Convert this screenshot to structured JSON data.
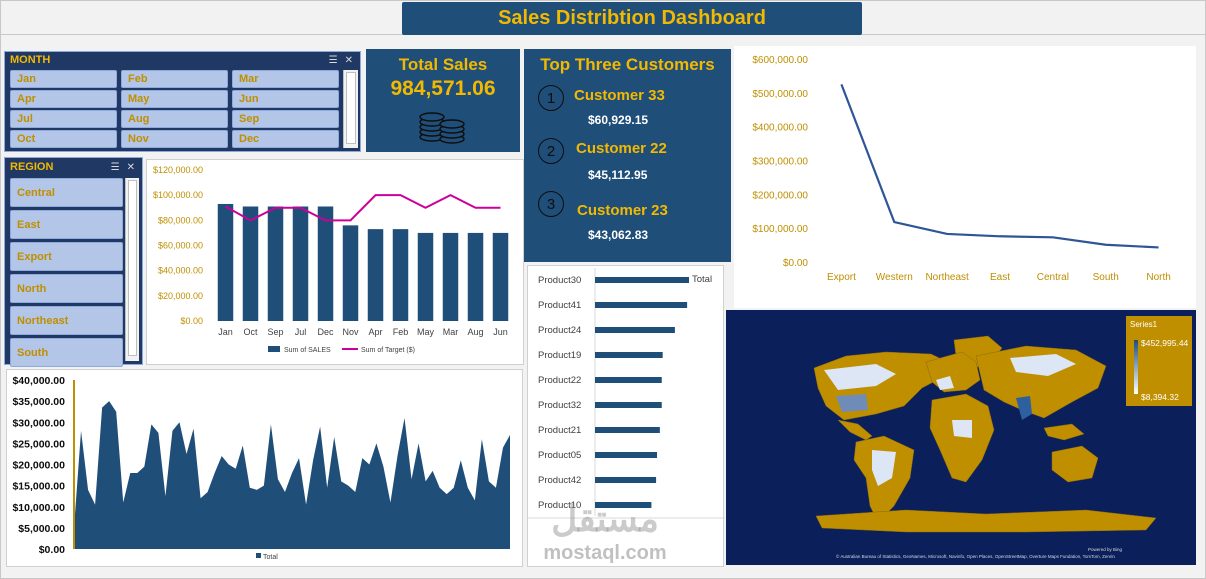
{
  "dashboard": {
    "title": "Sales Distribtion Dashboard"
  },
  "month_slicer": {
    "label": "MONTH",
    "items": [
      "Jan",
      "Feb",
      "Mar",
      "Apr",
      "May",
      "Jun",
      "Jul",
      "Aug",
      "Sep",
      "Oct",
      "Nov",
      "Dec"
    ]
  },
  "region_slicer": {
    "label": "REGION",
    "items": [
      "Central",
      "East",
      "Export",
      "North",
      "Northeast",
      "South"
    ]
  },
  "total_sales": {
    "title": "Total Sales",
    "value": "984,571.06",
    "icon": "coins-icon"
  },
  "top_customers": {
    "title": "Top Three Customers",
    "items": [
      {
        "rank": "1",
        "name": "Customer 33",
        "amount": "$60,929.15"
      },
      {
        "rank": "2",
        "name": "Customer 22",
        "amount": "$45,112.95"
      },
      {
        "rank": "3",
        "name": "Customer 23",
        "amount": "$43,062.83"
      }
    ]
  },
  "colors": {
    "navy": "#1f4e79",
    "gold": "#f2b900",
    "dark_gold": "#bf8f00",
    "target_line": "#cc0099",
    "map_bg": "#0b1f5b"
  },
  "map": {
    "legend_title": "Series1",
    "legend_max": "$452,995.44",
    "legend_min": "$8,394.32",
    "credit": "© Australian Bureau of Statistics, GeoNames, Microsoft, Navinfo, Open Places, OpenStreetMap, Overture Maps Fundation, TomTom, Zenrin",
    "powered": "Powered by Bing"
  },
  "watermark": {
    "logo": "مستقل",
    "text": "mostaql.com"
  },
  "chart_data": [
    {
      "id": "sales_vs_target",
      "type": "bar",
      "categories": [
        "Jan",
        "Oct",
        "Sep",
        "Jul",
        "Dec",
        "Nov",
        "Apr",
        "Feb",
        "May",
        "Mar",
        "Aug",
        "Jun"
      ],
      "series": [
        {
          "name": "Sum of SALES",
          "type": "bar",
          "values": [
            93000,
            91000,
            91000,
            91000,
            91000,
            76000,
            73000,
            73000,
            70000,
            70000,
            70000,
            70000
          ]
        },
        {
          "name": "Sum of Target ($)",
          "type": "line",
          "values": [
            91000,
            80000,
            90000,
            90000,
            80000,
            80000,
            100000,
            100000,
            90000,
            100000,
            90000,
            90000
          ]
        }
      ],
      "yticks": [
        "$0.00",
        "$20,000.00",
        "$40,000.00",
        "$60,000.00",
        "$80,000.00",
        "$100,000.00",
        "$120,000.00"
      ],
      "ylim": [
        0,
        120000
      ],
      "legend": "bottom"
    },
    {
      "id": "sales_by_region",
      "type": "line",
      "categories": [
        "Export",
        "Western",
        "Northeast",
        "East",
        "Central",
        "South",
        "North"
      ],
      "values": [
        525000,
        118000,
        83000,
        76000,
        73000,
        51000,
        43000
      ],
      "yticks": [
        "$0.00",
        "$100,000.00",
        "$200,000.00",
        "$300,000.00",
        "$400,000.00",
        "$500,000.00",
        "$600,000.00"
      ],
      "ylim": [
        0,
        600000
      ]
    },
    {
      "id": "sales_by_product",
      "type": "bar",
      "orientation": "horizontal",
      "categories": [
        "Product30",
        "Product41",
        "Product24",
        "Product19",
        "Product22",
        "Product32",
        "Product21",
        "Product05",
        "Product42",
        "Product10"
      ],
      "values": [
        1.0,
        0.98,
        0.85,
        0.72,
        0.71,
        0.71,
        0.69,
        0.66,
        0.65,
        0.6
      ],
      "legend_label": "Total",
      "legend": "top-right"
    },
    {
      "id": "sales_trend",
      "type": "area",
      "values": [
        5000,
        28000,
        14000,
        10500,
        33500,
        35000,
        32500,
        11000,
        18000,
        18000,
        19500,
        29500,
        27500,
        12500,
        28000,
        30000,
        22500,
        28500,
        12000,
        13500,
        18000,
        22000,
        20000,
        19000,
        24500,
        14500,
        14000,
        15000,
        29500,
        16500,
        13500,
        18000,
        21500,
        10500,
        21000,
        29000,
        14500,
        26500,
        16000,
        15000,
        13500,
        21500,
        20000,
        25000,
        19500,
        11000,
        22000,
        31000,
        16500,
        25000,
        16000,
        18500,
        14500,
        13000,
        14500,
        21000,
        14500,
        11500,
        26000,
        16000,
        14500,
        24000,
        27000
      ],
      "yticks": [
        "$0.00",
        "$5,000.00",
        "$10,000.00",
        "$15,000.00",
        "$20,000.00",
        "$25,000.00",
        "$30,000.00",
        "$35,000.00",
        "$40,000.00"
      ],
      "ylim": [
        0,
        40000
      ],
      "legend_label": "Total",
      "legend": "bottom"
    }
  ]
}
